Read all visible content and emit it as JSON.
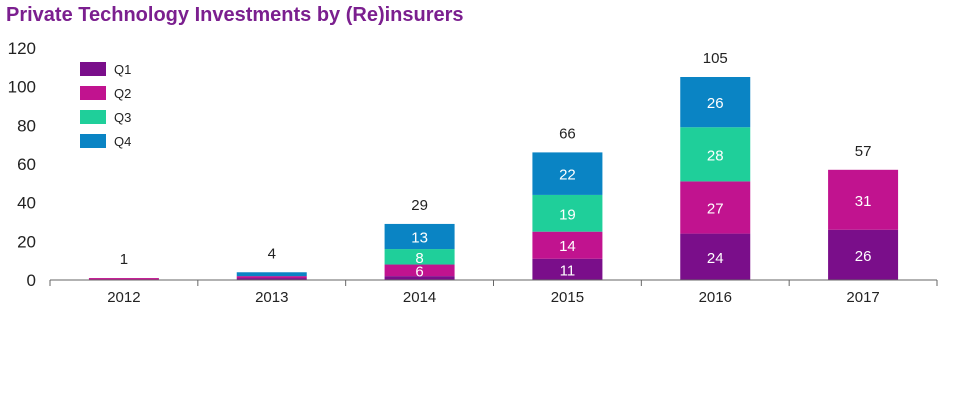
{
  "chart_data": {
    "type": "bar",
    "stacked": true,
    "title": "Private Technology Investments by (Re)insurers",
    "xlabel": "",
    "ylabel": "",
    "categories": [
      "2012",
      "2013",
      "2014",
      "2015",
      "2016",
      "2017"
    ],
    "series": [
      {
        "name": "Q1",
        "color": "#7a0e8a",
        "values": [
          0,
          1,
          2,
          11,
          24,
          26
        ]
      },
      {
        "name": "Q2",
        "color": "#c1138f",
        "values": [
          1,
          1,
          6,
          14,
          27,
          31
        ]
      },
      {
        "name": "Q3",
        "color": "#1fcf9a",
        "values": [
          0,
          0,
          8,
          19,
          28,
          0
        ]
      },
      {
        "name": "Q4",
        "color": "#0a84c4",
        "values": [
          0,
          2,
          13,
          22,
          26,
          0
        ]
      }
    ],
    "segment_labels": [
      [
        "",
        "",
        "",
        "11",
        "24",
        "26"
      ],
      [
        "",
        "",
        "6",
        "14",
        "27",
        "31"
      ],
      [
        "",
        "",
        "8",
        "19",
        "28",
        ""
      ],
      [
        "",
        "",
        "13",
        "22",
        "26",
        ""
      ]
    ],
    "totals": [
      "1",
      "4",
      "29",
      "66",
      "105",
      "57"
    ],
    "ylim": [
      0,
      120
    ],
    "yticks": [
      0,
      20,
      40,
      60,
      80,
      100,
      120
    ],
    "legend_position": "top-left",
    "grid": false
  }
}
